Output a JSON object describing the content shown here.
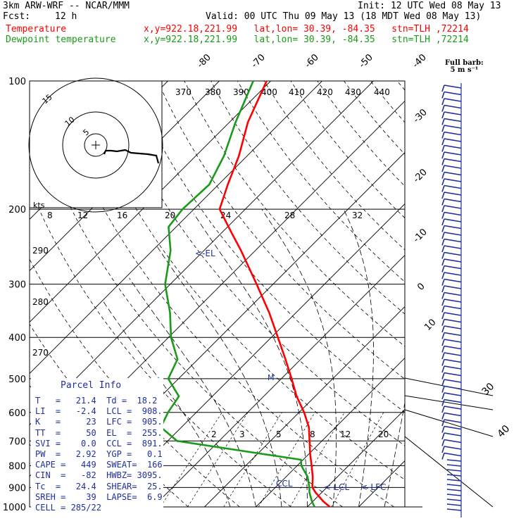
{
  "header": {
    "model": "3km ARW-WRF -- NCAR/MMM",
    "init": "Init: 12 UTC Wed 08 May 13",
    "fcst_label": "Fcst:",
    "fcst_value": "12 h",
    "valid": "Valid: 00 UTC Thu 09 May 13 (18 MDT Wed 08 May 13)",
    "temp_label": "Temperature",
    "dew_label": "Dewpoint temperature",
    "temp_loc": "x,y=922.18,221.99   lat,lon= 30.39, -84.35   stn=TLH ,72214",
    "dew_loc": "x,y=922.18,221.99   lat,lon= 30.39, -84.35   stn=TLH ,72214"
  },
  "barb_legend": {
    "line1": "Full barb:",
    "line2": "5 m s⁻¹"
  },
  "parcel": {
    "title": "Parcel Info",
    "rows": [
      "T   =   21.4  Td =  18.2",
      "LI  =   -2.4  LCL =  908.",
      "K   =     23  LFC =  905.",
      "TT  =     50  EL  =  255.",
      "SVI =    0.0  CCL =  891.",
      "PW  =   2.92  YGP =   0.1",
      "CAPE =   449  SWEAT=  166",
      "CIN  =   -82  HWBZ= 3095.",
      "Tc  =   24.4  SHEAR=  25.",
      "SREH =    39  LAPSE=  6.9",
      "CELL = 285/22"
    ]
  },
  "hodograph": {
    "ring_labels": [
      "5",
      "10",
      "15"
    ],
    "kts_label": "kts",
    "theta_labels": [
      "370",
      "380",
      "390",
      "400",
      "410",
      "420",
      "430",
      "440"
    ]
  },
  "level_labels": {
    "el": "<-EL",
    "m": "M",
    "lcl": "<-LCL",
    "lfc": "<-LFC",
    "ccl": "CCL"
  },
  "side_labels": {
    "l30": "30",
    "l40": "40"
  },
  "chart_data": {
    "type": "line",
    "title": "",
    "xlabel": "",
    "ylabel": "",
    "y_scale": "log",
    "pressure_levels": [
      100,
      200,
      300,
      400,
      500,
      600,
      700,
      800,
      900,
      1000
    ],
    "ylim": [
      1000,
      100
    ],
    "isotherm_labels": [
      "-80",
      "-70",
      "-60",
      "-50",
      "-40",
      "-30",
      "-20",
      "-10",
      "0",
      "10"
    ],
    "mixing_ratio_labels": [
      "2",
      "3",
      "5",
      "8",
      "12",
      "20"
    ],
    "dry_adiabat_labels": [
      "290",
      "280",
      "270"
    ],
    "series": [
      {
        "name": "Temperature",
        "color": "#ff0000",
        "points": [
          [
            1000,
            24.4
          ],
          [
            970,
            22.0
          ],
          [
            925,
            18.8
          ],
          [
            900,
            17.2
          ],
          [
            850,
            15.2
          ],
          [
            800,
            12.8
          ],
          [
            750,
            10.2
          ],
          [
            700,
            7.6
          ],
          [
            650,
            4.8
          ],
          [
            600,
            1.0
          ],
          [
            550,
            -3.6
          ],
          [
            500,
            -8.0
          ],
          [
            450,
            -13.0
          ],
          [
            400,
            -18.7
          ],
          [
            350,
            -25.2
          ],
          [
            300,
            -33.2
          ],
          [
            250,
            -42.8
          ],
          [
            225,
            -48.6
          ],
          [
            200,
            -55.0
          ],
          [
            175,
            -58.2
          ],
          [
            150,
            -61.6
          ],
          [
            125,
            -66.4
          ],
          [
            100,
            -70.8
          ]
        ]
      },
      {
        "name": "Dewpoint temperature",
        "color": "#1a9a1a",
        "points": [
          [
            1000,
            21.4
          ],
          [
            970,
            19.8
          ],
          [
            925,
            17.6
          ],
          [
            900,
            16.6
          ],
          [
            850,
            14.2
          ],
          [
            800,
            10.8
          ],
          [
            775,
            9.6
          ],
          [
            750,
            0.6
          ],
          [
            700,
            -18.2
          ],
          [
            650,
            -24.0
          ],
          [
            600,
            -25.5
          ],
          [
            550,
            -26.5
          ],
          [
            500,
            -32.0
          ],
          [
            450,
            -34.0
          ],
          [
            400,
            -39.5
          ],
          [
            350,
            -44.5
          ],
          [
            300,
            -51.0
          ],
          [
            250,
            -56.5
          ],
          [
            220,
            -61.5
          ],
          [
            200,
            -62.2
          ],
          [
            175,
            -61.8
          ],
          [
            150,
            -64.5
          ],
          [
            125,
            -68.8
          ],
          [
            100,
            -73.4
          ]
        ]
      }
    ]
  }
}
